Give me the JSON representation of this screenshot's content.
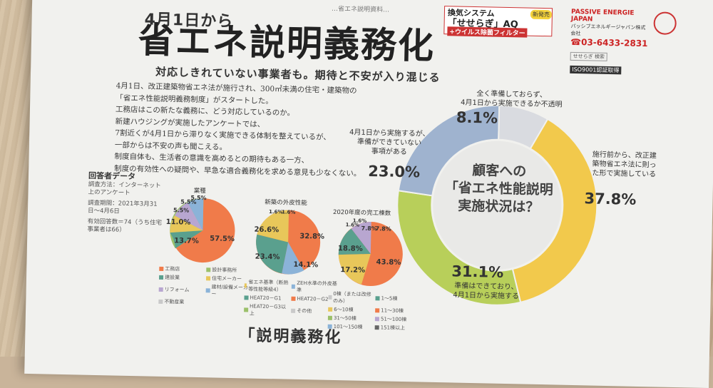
{
  "header": {
    "top_note": "…省エネ説明資料…",
    "date_title": "4月1日から",
    "main_title": "省エネ説明義務化",
    "subtitle": "対応しきれていない事業者も。期待と不安が入り混じる"
  },
  "ad": {
    "system_label": "換気システム",
    "model": "「せせらぎ」AQ",
    "filter_label": "+ウイルス除菌フィルター",
    "badge": "新発売",
    "company_en": "PASSIVE ENERGIE JAPAN",
    "company_jp": "パッシブエネルギージャパン株式会社",
    "phone": "☎03-6433-2831",
    "search": "せせらぎ 検索",
    "iso": "ISO9001認証取得"
  },
  "article": {
    "lines": [
      "4月1日、改正建築物省エネ法が施行され、300㎡未満の住宅・建築物の",
      "「省エネ性能説明義務制度」がスタートした。",
      "工務店はこの新たな義務に、どう対応しているのか。",
      "新建ハウジングが実施したアンケートでは、",
      "7割近くが4月1日から滞りなく実施できる体制を整えているが、",
      "一部からは不安の声も聞こえる。",
      "制度自体も、生活者の意識を高めるとの期待もある一方、",
      "制度の有効性への疑問や、早急な適合義務化を求める意見も少なくない。"
    ]
  },
  "respondent": {
    "title": "回答者データ",
    "method": "調査方法：インターネット上のアンケート",
    "period": "調査期間：2021年3月31日〜4月6日",
    "count": "有効回答数＝74（うち住宅事業者は66）"
  },
  "small_charts": {
    "business": {
      "title": "業種",
      "labels": [
        "57.5%",
        "13.7%",
        "11.0%",
        "5.5%",
        "5.5%",
        "5.5%"
      ],
      "legend": [
        "工務店",
        "設計事務所",
        "建設業",
        "住宅メーカー",
        "リフォーム",
        "建材/設備メーカー",
        "不動産業"
      ]
    },
    "performance": {
      "title": "新築の外皮性能",
      "labels": [
        "32.8%",
        "14.1%",
        "23.4%",
        "26.6%",
        "1.6%",
        "1.6%"
      ],
      "legend": [
        "省エネ基準（断熱等性能等級4）",
        "ZEH水準の外皮基準",
        "HEAT20－G1",
        "HEAT20－G2",
        "HEAT20－G3以上",
        "その他"
      ]
    },
    "completed": {
      "title": "2020年度の完工棟数",
      "labels": [
        "43.8%",
        "17.2%",
        "18.8%",
        "7.8%",
        "7.8%",
        "1.6%",
        "1.6%"
      ],
      "legend": [
        "0棟（または改修のみ）",
        "1〜5棟",
        "6〜10棟",
        "11〜30棟",
        "31〜50棟",
        "51〜100棟",
        "101〜150棟",
        "151棟以上"
      ]
    }
  },
  "chart_data": {
    "type": "pie",
    "title": "顧客への「省エネ性能説明」実施状況は？",
    "series": [
      {
        "label": "施行前から、改正建築物省エネ法に則った形で実施している",
        "value": 37.8,
        "color": "#f2c94c"
      },
      {
        "label": "準備はできており、4月1日から実施する",
        "value": 31.1,
        "color": "#b8cf5a"
      },
      {
        "label": "4月1日から実施するが、準備ができていない事項がある",
        "value": 23.0,
        "color": "#9fb3cf"
      },
      {
        "label": "全く準備しておらず、4月1日から実施できるか不透明",
        "value": 8.1,
        "color": "#d9dbe0"
      }
    ],
    "display": {
      "pct_a": "37.8%",
      "pct_b": "31.1%",
      "pct_c": "23.0%",
      "pct_d": "8.1%",
      "center_1": "顧客への",
      "center_2": "「省エネ性能説明",
      "center_3": "実施状況は？",
      "label_a1": "施行前から、改正建",
      "label_a2": "築物省エネ法に則っ",
      "label_a3": "た形で実施している",
      "label_b1": "準備はできており、",
      "label_b2": "4月1日から実施する",
      "label_c1": "4月1日から実施するが、",
      "label_c2": "準備ができていない",
      "label_c3": "事項がある",
      "label_d1": "全く準備しておらず、",
      "label_d2": "4月1日から実施できるか不透明"
    }
  },
  "bottom": {
    "heading": "「説明義務化"
  }
}
